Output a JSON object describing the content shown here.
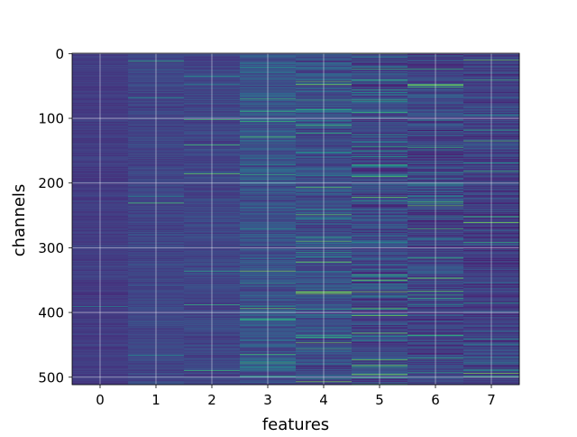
{
  "chart_data": {
    "type": "heatmap",
    "title": "",
    "xlabel": "features",
    "ylabel": "channels",
    "x_ticks": [
      "0",
      "1",
      "2",
      "3",
      "4",
      "5",
      "6",
      "7"
    ],
    "y_ticks": [
      "0",
      "100",
      "200",
      "300",
      "400",
      "500"
    ],
    "xlim": [
      -0.5,
      7.5
    ],
    "ylim": [
      511.5,
      -0.5
    ],
    "n_rows": 512,
    "n_cols": 8,
    "colormap": "viridis",
    "grid": true,
    "column_profiles": [
      {
        "col": 0,
        "mean": 0.22,
        "spread": 0.05,
        "spike_rate": 0.004
      },
      {
        "col": 1,
        "mean": 0.26,
        "spread": 0.07,
        "spike_rate": 0.008
      },
      {
        "col": 2,
        "mean": 0.26,
        "spread": 0.08,
        "spike_rate": 0.012
      },
      {
        "col": 3,
        "mean": 0.32,
        "spread": 0.13,
        "spike_rate": 0.035
      },
      {
        "col": 4,
        "mean": 0.3,
        "spread": 0.15,
        "spike_rate": 0.045
      },
      {
        "col": 5,
        "mean": 0.28,
        "spread": 0.17,
        "spike_rate": 0.055
      },
      {
        "col": 6,
        "mean": 0.26,
        "spread": 0.16,
        "spike_rate": 0.05
      },
      {
        "col": 7,
        "mean": 0.24,
        "spread": 0.13,
        "spike_rate": 0.04
      }
    ],
    "highlight_cells": [
      {
        "col": 4,
        "row": 43,
        "value": 0.78
      },
      {
        "col": 4,
        "row": 290,
        "value": 0.8
      },
      {
        "col": 4,
        "row": 368,
        "value": 0.85
      },
      {
        "col": 5,
        "row": 496,
        "value": 0.88
      },
      {
        "col": 7,
        "row": 10,
        "value": 0.8
      }
    ]
  }
}
